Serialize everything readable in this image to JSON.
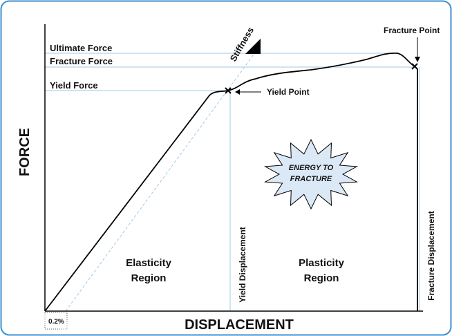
{
  "diagram": {
    "y_axis_label": "FORCE",
    "x_axis_label": "DISPLACEMENT",
    "force_levels": [
      "Ultimate Force",
      "Fracture Force",
      "Yield Force"
    ],
    "stiffness": "Stiffness",
    "fracture_point": "Fracture Point",
    "yield_point": "Yield Point",
    "offset": "0.2%",
    "elastic_region": [
      "Elasticity",
      "Region"
    ],
    "plastic_region": [
      "Plasticity",
      "Region"
    ],
    "yield_displacement": "Yield Displacement",
    "fracture_displacement": "Fracture Displacement",
    "energy": [
      "ENERGY TO",
      "FRACTURE"
    ]
  }
}
